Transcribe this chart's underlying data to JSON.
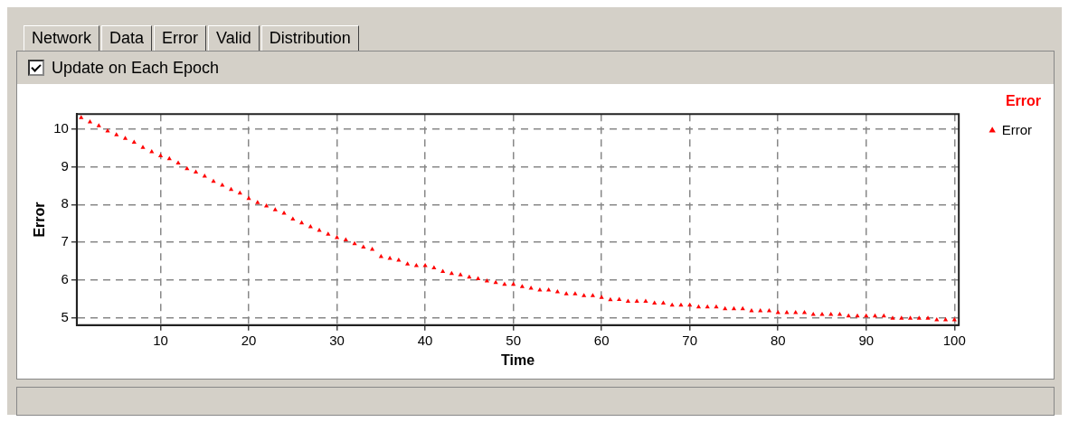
{
  "chart_data": {
    "type": "scatter",
    "title": "Error",
    "xlabel": "Time",
    "ylabel": "Error",
    "annotations": [
      "Network",
      "Data",
      "Error",
      "Valid",
      "Distribution",
      "Update on Each Epoch"
    ],
    "x": [
      1,
      2,
      3,
      4,
      5,
      6,
      7,
      8,
      9,
      10,
      11,
      12,
      13,
      14,
      15,
      16,
      17,
      18,
      19,
      20,
      21,
      22,
      23,
      24,
      25,
      26,
      27,
      28,
      29,
      30,
      31,
      32,
      33,
      34,
      35,
      36,
      37,
      38,
      39,
      40,
      41,
      42,
      43,
      44,
      45,
      46,
      47,
      48,
      49,
      50,
      51,
      52,
      53,
      54,
      55,
      56,
      57,
      58,
      59,
      60,
      61,
      62,
      63,
      64,
      65,
      66,
      67,
      68,
      69,
      70,
      71,
      72,
      73,
      74,
      75,
      76,
      77,
      78,
      79,
      80,
      81,
      82,
      83,
      84,
      85,
      86,
      87,
      88,
      89,
      90,
      91,
      92,
      93,
      94,
      95,
      96,
      97,
      98,
      99,
      100
    ],
    "series": [
      {
        "name": "Error",
        "color": "#ff0000",
        "values": [
          10.3,
          10.19,
          10.09,
          9.95,
          9.85,
          9.75,
          9.65,
          9.51,
          9.4,
          9.29,
          9.21,
          9.1,
          8.95,
          8.86,
          8.75,
          8.61,
          8.51,
          8.4,
          8.3,
          8.16,
          8.05,
          7.96,
          7.86,
          7.77,
          7.61,
          7.51,
          7.41,
          7.31,
          7.21,
          7.12,
          7.06,
          6.96,
          6.87,
          6.81,
          6.62,
          6.57,
          6.52,
          6.42,
          6.38,
          6.38,
          6.32,
          6.22,
          6.17,
          6.13,
          6.07,
          6.03,
          5.97,
          5.93,
          5.88,
          5.88,
          5.82,
          5.78,
          5.73,
          5.73,
          5.68,
          5.63,
          5.63,
          5.58,
          5.58,
          5.53,
          5.47,
          5.48,
          5.43,
          5.43,
          5.43,
          5.38,
          5.38,
          5.33,
          5.33,
          5.33,
          5.28,
          5.28,
          5.28,
          5.23,
          5.23,
          5.23,
          5.18,
          5.18,
          5.18,
          5.13,
          5.13,
          5.13,
          5.13,
          5.08,
          5.08,
          5.08,
          5.08,
          5.04,
          5.04,
          5.04,
          5.04,
          5.04,
          4.98,
          4.98,
          4.98,
          4.98,
          4.98,
          4.94,
          4.94,
          4.94
        ]
      }
    ],
    "xlim": [
      0.5,
      100.5
    ],
    "xticks": [
      10,
      20,
      30,
      40,
      50,
      60,
      70,
      80,
      90,
      100
    ],
    "ylim": [
      4.8,
      10.4
    ],
    "yticks": [
      5,
      6,
      7,
      8,
      9,
      10
    ],
    "grid": true,
    "legend": "top right",
    "marker": "triangle"
  }
}
